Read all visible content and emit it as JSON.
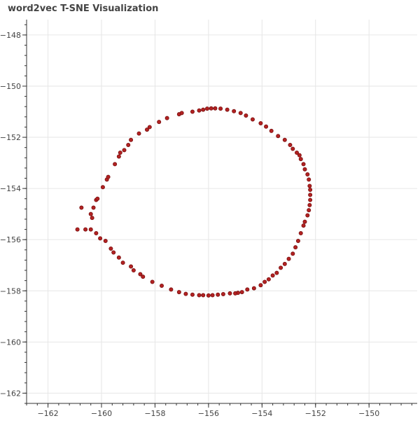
{
  "title": "word2vec T-SNE Visualization",
  "chart_data": {
    "type": "scatter",
    "title": "word2vec T-SNE Visualization",
    "xlabel": "",
    "ylabel": "",
    "xlim": [
      -162.8,
      -148.2
    ],
    "ylim": [
      -162.4,
      -147.4
    ],
    "x_ticks": [
      -162,
      -160,
      -158,
      -156,
      -154,
      -152,
      -150
    ],
    "y_ticks": [
      -148,
      -150,
      -152,
      -154,
      -156,
      -158,
      -160,
      -162
    ],
    "x_tick_labels": [
      "−162",
      "−160",
      "−158",
      "−156",
      "−154",
      "−152",
      "−150"
    ],
    "y_tick_labels": [
      "−148",
      "−150",
      "−152",
      "−154",
      "−156",
      "−158",
      "−160",
      "−162"
    ],
    "grid": true,
    "marker_color": "#b22222",
    "marker_edge_color": "#7a1010",
    "points": [
      {
        "x": -160.9,
        "y": -155.6
      },
      {
        "x": -160.6,
        "y": -155.6
      },
      {
        "x": -160.75,
        "y": -154.75
      },
      {
        "x": -160.4,
        "y": -155.0
      },
      {
        "x": -160.35,
        "y": -155.15
      },
      {
        "x": -160.3,
        "y": -154.75
      },
      {
        "x": -160.2,
        "y": -154.45
      },
      {
        "x": -160.15,
        "y": -154.4
      },
      {
        "x": -159.95,
        "y": -153.95
      },
      {
        "x": -159.8,
        "y": -153.65
      },
      {
        "x": -159.75,
        "y": -153.55
      },
      {
        "x": -159.5,
        "y": -153.05
      },
      {
        "x": -159.35,
        "y": -152.75
      },
      {
        "x": -159.3,
        "y": -152.6
      },
      {
        "x": -159.15,
        "y": -152.5
      },
      {
        "x": -159.0,
        "y": -152.3
      },
      {
        "x": -158.9,
        "y": -152.1
      },
      {
        "x": -158.6,
        "y": -151.85
      },
      {
        "x": -158.3,
        "y": -151.7
      },
      {
        "x": -158.2,
        "y": -151.6
      },
      {
        "x": -157.85,
        "y": -151.4
      },
      {
        "x": -157.55,
        "y": -151.25
      },
      {
        "x": -157.1,
        "y": -151.1
      },
      {
        "x": -157.0,
        "y": -151.05
      },
      {
        "x": -156.6,
        "y": -151.0
      },
      {
        "x": -156.35,
        "y": -150.95
      },
      {
        "x": -156.2,
        "y": -150.92
      },
      {
        "x": -156.05,
        "y": -150.88
      },
      {
        "x": -155.9,
        "y": -150.87
      },
      {
        "x": -155.75,
        "y": -150.87
      },
      {
        "x": -155.55,
        "y": -150.88
      },
      {
        "x": -155.3,
        "y": -150.92
      },
      {
        "x": -155.05,
        "y": -150.98
      },
      {
        "x": -154.8,
        "y": -151.05
      },
      {
        "x": -154.6,
        "y": -151.15
      },
      {
        "x": -154.35,
        "y": -151.3
      },
      {
        "x": -154.05,
        "y": -151.45
      },
      {
        "x": -153.85,
        "y": -151.58
      },
      {
        "x": -153.65,
        "y": -151.75
      },
      {
        "x": -153.4,
        "y": -151.95
      },
      {
        "x": -153.15,
        "y": -152.1
      },
      {
        "x": -152.95,
        "y": -152.3
      },
      {
        "x": -152.85,
        "y": -152.45
      },
      {
        "x": -152.7,
        "y": -152.6
      },
      {
        "x": -152.6,
        "y": -152.7
      },
      {
        "x": -152.55,
        "y": -152.85
      },
      {
        "x": -152.45,
        "y": -153.05
      },
      {
        "x": -152.4,
        "y": -153.25
      },
      {
        "x": -152.3,
        "y": -153.45
      },
      {
        "x": -152.25,
        "y": -153.65
      },
      {
        "x": -152.22,
        "y": -153.9
      },
      {
        "x": -152.2,
        "y": -154.05
      },
      {
        "x": -152.2,
        "y": -154.25
      },
      {
        "x": -152.2,
        "y": -154.45
      },
      {
        "x": -152.22,
        "y": -154.65
      },
      {
        "x": -152.25,
        "y": -154.85
      },
      {
        "x": -152.3,
        "y": -155.05
      },
      {
        "x": -152.4,
        "y": -155.3
      },
      {
        "x": -152.45,
        "y": -155.45
      },
      {
        "x": -152.55,
        "y": -155.75
      },
      {
        "x": -152.65,
        "y": -156.05
      },
      {
        "x": -152.75,
        "y": -156.3
      },
      {
        "x": -152.85,
        "y": -156.55
      },
      {
        "x": -153.0,
        "y": -156.75
      },
      {
        "x": -153.15,
        "y": -156.95
      },
      {
        "x": -153.3,
        "y": -157.1
      },
      {
        "x": -153.45,
        "y": -157.3
      },
      {
        "x": -153.6,
        "y": -157.4
      },
      {
        "x": -153.75,
        "y": -157.55
      },
      {
        "x": -153.9,
        "y": -157.65
      },
      {
        "x": -154.05,
        "y": -157.78
      },
      {
        "x": -154.3,
        "y": -157.9
      },
      {
        "x": -154.55,
        "y": -157.95
      },
      {
        "x": -154.75,
        "y": -158.05
      },
      {
        "x": -154.9,
        "y": -158.08
      },
      {
        "x": -155.0,
        "y": -158.1
      },
      {
        "x": -155.2,
        "y": -158.1
      },
      {
        "x": -155.45,
        "y": -158.13
      },
      {
        "x": -155.65,
        "y": -158.15
      },
      {
        "x": -155.85,
        "y": -158.17
      },
      {
        "x": -156.0,
        "y": -158.18
      },
      {
        "x": -156.2,
        "y": -158.17
      },
      {
        "x": -156.35,
        "y": -158.17
      },
      {
        "x": -156.6,
        "y": -158.15
      },
      {
        "x": -156.85,
        "y": -158.12
      },
      {
        "x": -157.1,
        "y": -158.05
      },
      {
        "x": -157.4,
        "y": -157.95
      },
      {
        "x": -157.75,
        "y": -157.8
      },
      {
        "x": -158.1,
        "y": -157.65
      },
      {
        "x": -158.45,
        "y": -157.45
      },
      {
        "x": -158.55,
        "y": -157.35
      },
      {
        "x": -158.8,
        "y": -157.2
      },
      {
        "x": -158.9,
        "y": -157.05
      },
      {
        "x": -159.2,
        "y": -156.9
      },
      {
        "x": -159.35,
        "y": -156.7
      },
      {
        "x": -159.55,
        "y": -156.5
      },
      {
        "x": -159.65,
        "y": -156.35
      },
      {
        "x": -159.85,
        "y": -156.05
      },
      {
        "x": -160.05,
        "y": -155.95
      },
      {
        "x": -160.2,
        "y": -155.75
      },
      {
        "x": -160.4,
        "y": -155.6
      }
    ]
  }
}
